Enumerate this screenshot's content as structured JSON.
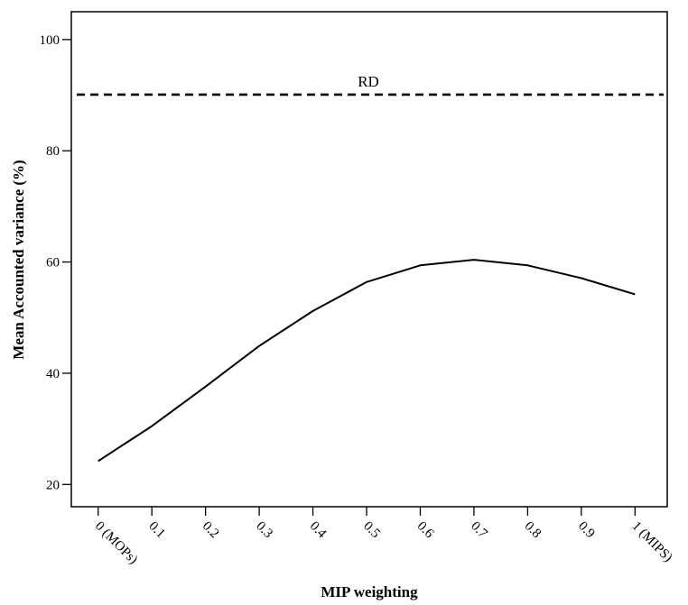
{
  "chart_data": {
    "type": "line",
    "title": "",
    "xlabel": "MIP weighting",
    "ylabel": "Mean Accounted variance (%)",
    "x": [
      0,
      0.1,
      0.2,
      0.3,
      0.4,
      0.5,
      0.6,
      0.7,
      0.8,
      0.9,
      1
    ],
    "x_tick_labels": [
      "0 (MOPs)",
      "0.1",
      "0.2",
      "0.3",
      "0.4",
      "0.5",
      "0.6",
      "0.7",
      "0.8",
      "0.9",
      "1 (MIPS)"
    ],
    "y_ticks": [
      20,
      40,
      60,
      80,
      100
    ],
    "xlim": [
      -0.05,
      1.06
    ],
    "ylim": [
      16,
      105
    ],
    "series": [
      {
        "values": [
          24.2,
          30.5,
          37.6,
          44.9,
          51.2,
          56.4,
          59.4,
          60.4,
          59.4,
          57.1,
          54.2
        ],
        "style": "solid",
        "color": "#000000"
      }
    ],
    "reference_lines": [
      {
        "label": "RD",
        "value": 90.1,
        "style": "dashed",
        "color": "#000000"
      }
    ],
    "grid": false,
    "legend": "none"
  }
}
